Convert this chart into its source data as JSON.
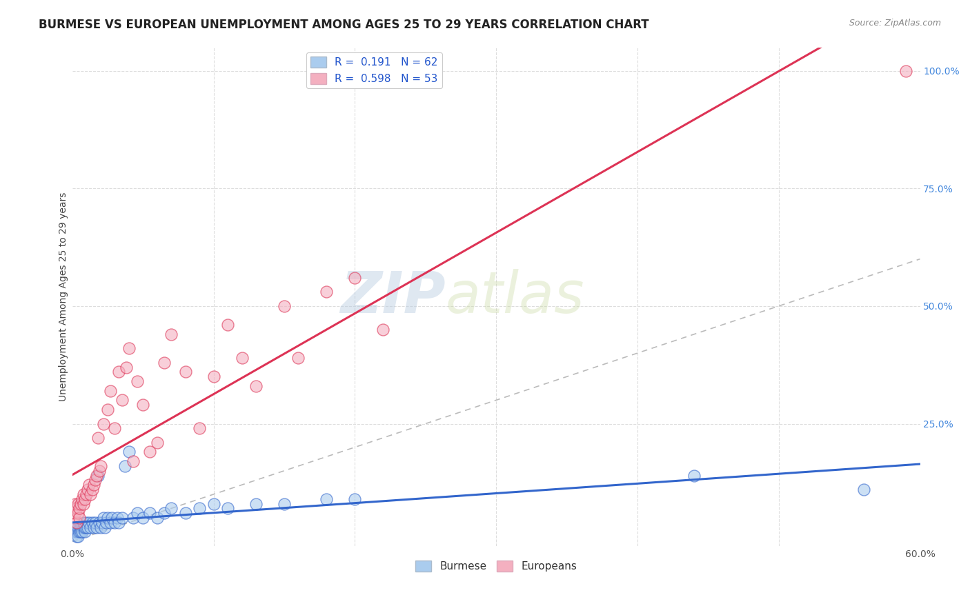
{
  "title": "BURMESE VS EUROPEAN UNEMPLOYMENT AMONG AGES 25 TO 29 YEARS CORRELATION CHART",
  "source": "Source: ZipAtlas.com",
  "ylabel": "Unemployment Among Ages 25 to 29 years",
  "xlim": [
    0.0,
    0.6
  ],
  "ylim": [
    -0.01,
    1.05
  ],
  "burmese_color": "#aaccee",
  "european_color": "#f4b0c0",
  "burmese_R": 0.191,
  "burmese_N": 62,
  "european_R": 0.598,
  "european_N": 53,
  "burmese_line_color": "#3366cc",
  "european_line_color": "#dd3355",
  "diagonal_color": "#bbbbbb",
  "watermark": "ZIPAtlas",
  "watermark_color": "#c8d8ea",
  "title_fontsize": 12,
  "axis_label_fontsize": 10,
  "tick_fontsize": 10,
  "legend_fontsize": 11,
  "burmese_x": [
    0.001,
    0.001,
    0.002,
    0.002,
    0.003,
    0.003,
    0.003,
    0.004,
    0.004,
    0.004,
    0.005,
    0.005,
    0.006,
    0.006,
    0.007,
    0.007,
    0.008,
    0.008,
    0.009,
    0.009,
    0.01,
    0.01,
    0.011,
    0.012,
    0.013,
    0.014,
    0.015,
    0.016,
    0.017,
    0.018,
    0.019,
    0.02,
    0.021,
    0.022,
    0.023,
    0.024,
    0.025,
    0.027,
    0.028,
    0.03,
    0.032,
    0.033,
    0.035,
    0.037,
    0.04,
    0.043,
    0.046,
    0.05,
    0.055,
    0.06,
    0.065,
    0.07,
    0.08,
    0.09,
    0.1,
    0.11,
    0.13,
    0.15,
    0.18,
    0.2,
    0.44,
    0.56
  ],
  "burmese_y": [
    0.03,
    0.02,
    0.02,
    0.03,
    0.01,
    0.02,
    0.03,
    0.02,
    0.01,
    0.03,
    0.02,
    0.03,
    0.03,
    0.02,
    0.03,
    0.02,
    0.03,
    0.04,
    0.02,
    0.03,
    0.03,
    0.04,
    0.03,
    0.04,
    0.03,
    0.04,
    0.03,
    0.04,
    0.03,
    0.14,
    0.04,
    0.03,
    0.04,
    0.05,
    0.03,
    0.04,
    0.05,
    0.04,
    0.05,
    0.04,
    0.05,
    0.04,
    0.05,
    0.16,
    0.19,
    0.05,
    0.06,
    0.05,
    0.06,
    0.05,
    0.06,
    0.07,
    0.06,
    0.07,
    0.08,
    0.07,
    0.08,
    0.08,
    0.09,
    0.09,
    0.14,
    0.11
  ],
  "european_x": [
    0.001,
    0.001,
    0.002,
    0.002,
    0.003,
    0.003,
    0.004,
    0.004,
    0.005,
    0.005,
    0.006,
    0.007,
    0.008,
    0.008,
    0.009,
    0.01,
    0.011,
    0.012,
    0.013,
    0.014,
    0.015,
    0.016,
    0.017,
    0.018,
    0.019,
    0.02,
    0.022,
    0.025,
    0.027,
    0.03,
    0.033,
    0.035,
    0.038,
    0.04,
    0.043,
    0.046,
    0.05,
    0.055,
    0.06,
    0.065,
    0.07,
    0.08,
    0.09,
    0.1,
    0.11,
    0.12,
    0.13,
    0.15,
    0.16,
    0.18,
    0.2,
    0.22,
    0.59
  ],
  "european_y": [
    0.05,
    0.07,
    0.06,
    0.08,
    0.04,
    0.07,
    0.06,
    0.08,
    0.05,
    0.07,
    0.08,
    0.09,
    0.08,
    0.1,
    0.09,
    0.1,
    0.11,
    0.12,
    0.1,
    0.11,
    0.12,
    0.13,
    0.14,
    0.22,
    0.15,
    0.16,
    0.25,
    0.28,
    0.32,
    0.24,
    0.36,
    0.3,
    0.37,
    0.41,
    0.17,
    0.34,
    0.29,
    0.19,
    0.21,
    0.38,
    0.44,
    0.36,
    0.24,
    0.35,
    0.46,
    0.39,
    0.33,
    0.5,
    0.39,
    0.53,
    0.56,
    0.45,
    1.0
  ]
}
